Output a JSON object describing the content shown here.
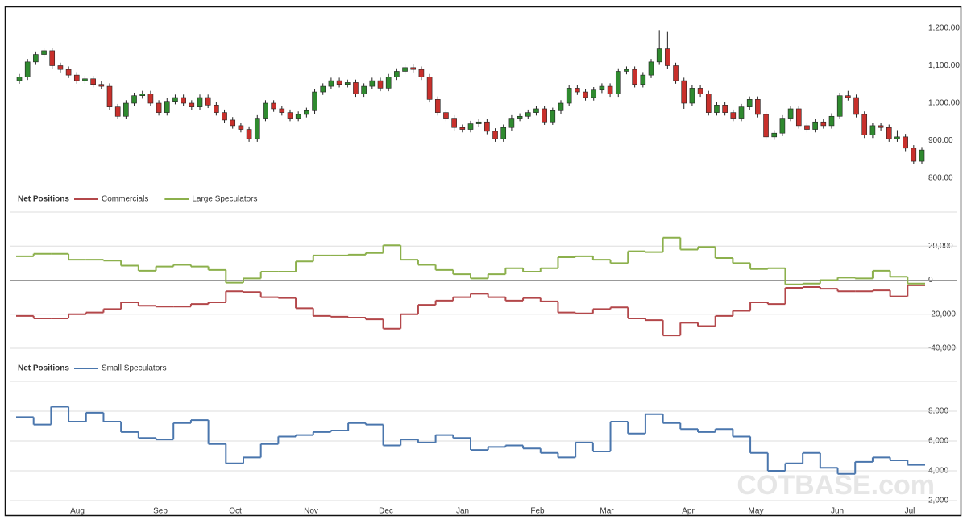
{
  "chart_data": [
    {
      "type": "candlestick",
      "open": [
        1060,
        1070,
        1110,
        1130,
        1140,
        1100,
        1090,
        1075,
        1060,
        1065,
        1050,
        1045,
        990,
        965,
        1000,
        1020,
        1025,
        1000,
        975,
        1005,
        1015,
        1000,
        990,
        1015,
        995,
        975,
        955,
        940,
        930,
        905,
        960,
        1000,
        985,
        975,
        960,
        970,
        980,
        1030,
        1045,
        1060,
        1050,
        1055,
        1025,
        1045,
        1060,
        1040,
        1070,
        1085,
        1095,
        1090,
        1070,
        1010,
        975,
        960,
        935,
        930,
        945,
        950,
        925,
        905,
        935,
        960,
        965,
        975,
        985,
        950,
        980,
        1000,
        1040,
        1030,
        1015,
        1035,
        1045,
        1025,
        1085,
        1090,
        1050,
        1075,
        1110,
        1145,
        1100,
        1060,
        1000,
        1040,
        1025,
        975,
        995,
        975,
        960,
        990,
        1010,
        970,
        910,
        920,
        960,
        985,
        940,
        930,
        950,
        940,
        965,
        1020,
        1015,
        970,
        915,
        940,
        935,
        905,
        910,
        880,
        845
      ],
      "high": [
        1078,
        1118,
        1138,
        1148,
        1148,
        1108,
        1098,
        1083,
        1073,
        1073,
        1058,
        1053,
        998,
        1008,
        1028,
        1033,
        1033,
        1008,
        1013,
        1023,
        1023,
        1008,
        1023,
        1023,
        1003,
        983,
        963,
        948,
        938,
        968,
        1008,
        1008,
        993,
        983,
        978,
        988,
        1038,
        1053,
        1068,
        1068,
        1063,
        1063,
        1053,
        1068,
        1068,
        1078,
        1093,
        1103,
        1103,
        1098,
        1078,
        1018,
        983,
        968,
        943,
        953,
        958,
        958,
        933,
        943,
        968,
        973,
        983,
        993,
        993,
        988,
        1008,
        1048,
        1048,
        1038,
        1043,
        1053,
        1053,
        1093,
        1098,
        1098,
        1083,
        1118,
        1195,
        1190,
        1108,
        1068,
        1048,
        1048,
        1033,
        1003,
        1003,
        983,
        998,
        1018,
        1018,
        978,
        928,
        968,
        993,
        993,
        948,
        958,
        958,
        973,
        1028,
        1033,
        1023,
        978,
        948,
        948,
        943,
        928,
        918,
        888,
        883
      ],
      "low": [
        1052,
        1062,
        1102,
        1122,
        1092,
        1082,
        1067,
        1052,
        1052,
        1042,
        1037,
        982,
        957,
        957,
        992,
        1012,
        992,
        967,
        967,
        997,
        992,
        982,
        982,
        987,
        967,
        947,
        932,
        922,
        897,
        897,
        952,
        977,
        967,
        952,
        952,
        962,
        972,
        1022,
        1037,
        1042,
        1042,
        1017,
        1017,
        1037,
        1032,
        1032,
        1062,
        1077,
        1082,
        1062,
        1002,
        967,
        952,
        927,
        922,
        922,
        937,
        917,
        897,
        897,
        927,
        952,
        957,
        967,
        942,
        942,
        972,
        992,
        1022,
        1007,
        1007,
        1027,
        1017,
        1017,
        1077,
        1042,
        1042,
        1067,
        1102,
        1092,
        1052,
        985,
        992,
        1017,
        967,
        967,
        967,
        952,
        952,
        982,
        962,
        902,
        902,
        912,
        952,
        932,
        922,
        922,
        932,
        932,
        957,
        1007,
        962,
        907,
        907,
        927,
        897,
        897,
        872,
        837,
        837
      ],
      "close": [
        1070,
        1110,
        1130,
        1140,
        1100,
        1090,
        1075,
        1060,
        1065,
        1050,
        1045,
        990,
        965,
        1000,
        1020,
        1025,
        1000,
        975,
        1005,
        1015,
        1000,
        990,
        1015,
        995,
        975,
        955,
        940,
        930,
        905,
        960,
        1000,
        985,
        975,
        960,
        970,
        980,
        1030,
        1045,
        1060,
        1050,
        1055,
        1025,
        1045,
        1060,
        1040,
        1070,
        1085,
        1095,
        1090,
        1070,
        1010,
        975,
        960,
        935,
        930,
        945,
        950,
        925,
        905,
        935,
        960,
        965,
        975,
        985,
        950,
        980,
        1000,
        1040,
        1030,
        1015,
        1035,
        1045,
        1025,
        1085,
        1090,
        1050,
        1075,
        1110,
        1145,
        1100,
        1060,
        1000,
        1040,
        1025,
        975,
        995,
        975,
        960,
        990,
        1010,
        970,
        910,
        920,
        960,
        985,
        940,
        930,
        950,
        940,
        965,
        1020,
        1015,
        970,
        915,
        940,
        935,
        905,
        910,
        880,
        845,
        875
      ],
      "up_color": "#2f8a2f",
      "down_color": "#c8302c",
      "ylim": [
        800,
        1200
      ],
      "yticks": [
        {
          "value": 800,
          "label": "800.00"
        },
        {
          "value": 900,
          "label": "900.00"
        },
        {
          "value": 1000,
          "label": "1,000.00"
        },
        {
          "value": 1100,
          "label": "1,100.00"
        },
        {
          "value": 1200,
          "label": "1,200.00"
        }
      ]
    },
    {
      "type": "step",
      "legend_title": "Net Positions",
      "series": [
        {
          "name": "Commercials",
          "color": "#b3474a",
          "values": [
            -21000,
            -22500,
            -22500,
            -20000,
            -19000,
            -17000,
            -13000,
            -15000,
            -15500,
            -15500,
            -14000,
            -13000,
            -6500,
            -7000,
            -10000,
            -10500,
            -16500,
            -21000,
            -21500,
            -22000,
            -23000,
            -28500,
            -20000,
            -14500,
            -12000,
            -10000,
            -8000,
            -10000,
            -12000,
            -10500,
            -12500,
            -19000,
            -19500,
            -17000,
            -16000,
            -22500,
            -23500,
            -32500,
            -25000,
            -27000,
            -21000,
            -18000,
            -13000,
            -14000,
            -4500,
            -4000,
            -5000,
            -6500,
            -6500,
            -6000,
            -9500,
            -3000
          ]
        },
        {
          "name": "Large Speculators",
          "color": "#8cb04c",
          "values": [
            14000,
            15500,
            15500,
            12000,
            12000,
            11500,
            8500,
            5500,
            8000,
            9000,
            8000,
            6000,
            -1500,
            1000,
            5000,
            5000,
            11000,
            14500,
            14500,
            15000,
            16000,
            20500,
            12000,
            9000,
            6000,
            3500,
            1000,
            3500,
            7000,
            5000,
            7000,
            13500,
            14000,
            12000,
            10000,
            17000,
            16500,
            25000,
            18000,
            19500,
            13000,
            10000,
            6500,
            7000,
            -2500,
            -2000,
            0,
            1500,
            1000,
            5500,
            2000,
            -2000
          ]
        }
      ],
      "ylim": [
        -40000,
        40000
      ],
      "grid": true,
      "yticks": [
        {
          "value": -40000,
          "label": "-40,000"
        },
        {
          "value": -20000,
          "label": "-20,000"
        },
        0,
        {
          "value": 20000,
          "label": "20,000"
        }
      ]
    },
    {
      "type": "step",
      "legend_title": "Net Positions",
      "series": [
        {
          "name": "Small Speculators",
          "color": "#4a76ad",
          "values": [
            7600,
            7100,
            8300,
            7300,
            7900,
            7300,
            6600,
            6200,
            6100,
            7200,
            7400,
            5800,
            4500,
            4900,
            5800,
            6300,
            6400,
            6600,
            6700,
            7200,
            7100,
            5700,
            6100,
            5900,
            6400,
            6200,
            5400,
            5600,
            5700,
            5500,
            5200,
            4900,
            5900,
            5300,
            7300,
            6500,
            7800,
            7200,
            6800,
            6600,
            6800,
            6300,
            5200,
            4000,
            4500,
            5200,
            4200,
            3800,
            4600,
            4900,
            4700,
            4400
          ]
        }
      ],
      "ylim": [
        2000,
        10000
      ],
      "grid": true,
      "yticks": [
        {
          "value": 2000,
          "label": "2,000"
        },
        {
          "value": 4000,
          "label": "4,000"
        },
        {
          "value": 6000,
          "label": "6,000"
        },
        {
          "value": 8000,
          "label": "8,000"
        }
      ]
    }
  ],
  "x_axis_labels": [
    "Aug",
    "Sep",
    "Oct",
    "Nov",
    "Dec",
    "Jan",
    "Feb",
    "Mar",
    "Apr",
    "May",
    "Jun",
    "Jul"
  ],
  "watermark": "COTBASE.com"
}
